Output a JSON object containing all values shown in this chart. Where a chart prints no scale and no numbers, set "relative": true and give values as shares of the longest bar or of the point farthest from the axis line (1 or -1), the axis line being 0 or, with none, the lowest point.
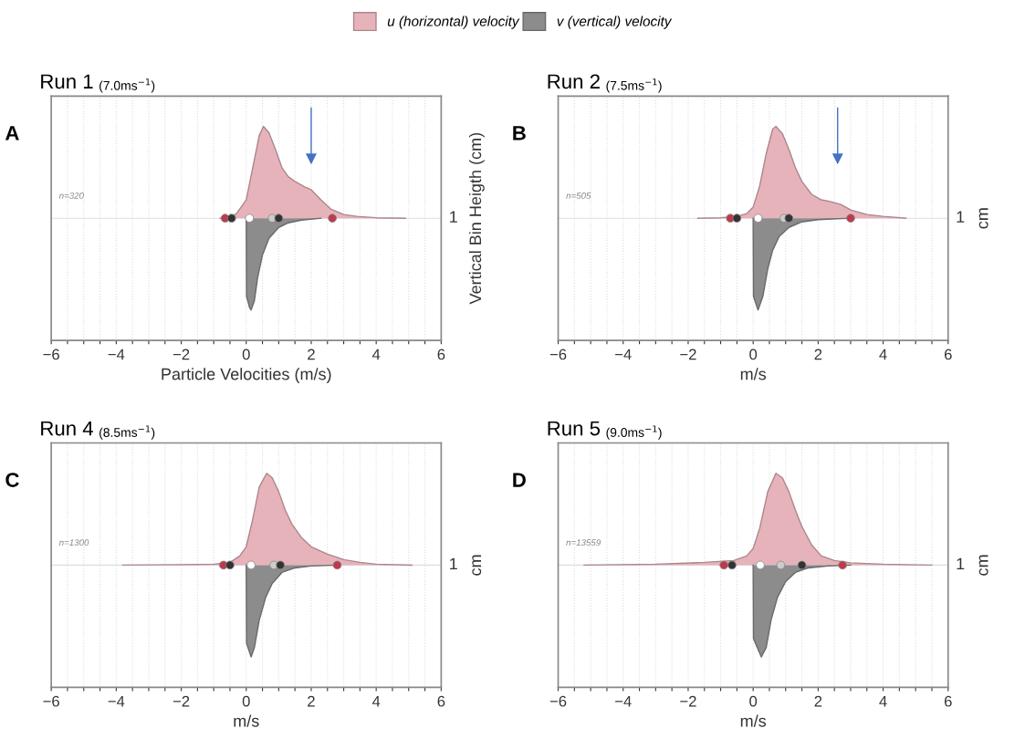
{
  "chart_data": [
    {
      "type": "area",
      "relative": true,
      "title": "Run 1",
      "subtitle": "(7.0ms$^{−1}$)",
      "xlabel": "Particle Velocities (m/s)",
      "ylabel": "Vertical Bin Heigth (cm)",
      "legend": "top",
      "grid": "x",
      "annotations": [
        "A",
        "n=320",
        "1"
      ],
      "ref_lines": [
        {
          "axis": "x",
          "value": 2.0,
          "color": "#4472c4"
        }
      ],
      "xlim": [
        -6,
        6
      ],
      "xticks": [
        -6,
        {
          "value": -5.5,
          "label": null
        },
        {
          "value": -5,
          "label": null
        },
        {
          "value": -4.5,
          "label": null
        },
        -4,
        {
          "value": -3.5,
          "label": null
        },
        {
          "value": -3,
          "label": null
        },
        {
          "value": -2.5,
          "label": null
        },
        -2,
        {
          "value": -1.5,
          "label": null
        },
        {
          "value": -1,
          "label": null
        },
        {
          "value": -0.5,
          "label": null
        },
        0,
        {
          "value": 0.5,
          "label": null
        },
        {
          "value": 1,
          "label": null
        },
        {
          "value": 1.5,
          "label": null
        },
        2,
        {
          "value": 2.5,
          "label": null
        },
        {
          "value": 3,
          "label": null
        },
        {
          "value": 3.5,
          "label": null
        },
        4,
        {
          "value": 4.5,
          "label": null
        },
        {
          "value": 5,
          "label": null
        },
        {
          "value": 5.5,
          "label": null
        },
        6
      ],
      "series": [
        {
          "name": "u (horizontal) velocity",
          "color": "#e6b3bb",
          "x": [
            -0.8,
            -0.5,
            -0.3,
            0,
            0.2,
            0.4,
            0.53,
            0.7,
            0.9,
            1.1,
            1.3,
            1.5,
            1.8,
            2.0,
            2.3,
            2.6,
            3.0,
            3.4,
            4.0,
            4.9
          ],
          "values": [
            0,
            0.01,
            0.05,
            0.2,
            0.55,
            0.9,
            1.0,
            0.93,
            0.75,
            0.55,
            0.45,
            0.4,
            0.34,
            0.31,
            0.2,
            0.1,
            0.04,
            0.02,
            0.005,
            0
          ]
        },
        {
          "name": "v (vertical) velocity",
          "color": "#8c8c8c",
          "x": [
            0,
            0.01,
            0.1,
            0.15,
            0.25,
            0.35,
            0.5,
            0.7,
            1.0,
            1.3,
            1.7,
            2.3
          ],
          "values": [
            0,
            -0.85,
            -0.97,
            -1.0,
            -0.9,
            -0.65,
            -0.4,
            -0.22,
            -0.1,
            -0.05,
            -0.02,
            0
          ]
        },
        {
          "type": "scatter",
          "marker": "circle",
          "x": [
            -0.65,
            -0.45,
            0.1,
            0.8,
            1.0,
            2.65
          ],
          "values": [
            0,
            0,
            0,
            0,
            0,
            0
          ],
          "colors": [
            "#c0394b",
            "#333333",
            "#ffffff",
            "#cccccc",
            "#333333",
            "#c0394b"
          ]
        }
      ]
    },
    {
      "type": "area",
      "relative": true,
      "title": "Run 2",
      "subtitle": "(7.5ms$^{−1}$)",
      "xlabel": "m/s",
      "ylabel": "cm",
      "grid": "x",
      "annotations": [
        "B",
        "n=505",
        "1"
      ],
      "ref_lines": [
        {
          "axis": "x",
          "value": 2.6,
          "color": "#4472c4"
        }
      ],
      "xlim": [
        -6,
        6
      ],
      "xticks": [
        -6,
        {
          "value": -5.5,
          "label": null
        },
        {
          "value": -5,
          "label": null
        },
        {
          "value": -4.5,
          "label": null
        },
        -4,
        {
          "value": -3.5,
          "label": null
        },
        {
          "value": -3,
          "label": null
        },
        {
          "value": -2.5,
          "label": null
        },
        -2,
        {
          "value": -1.5,
          "label": null
        },
        {
          "value": -1,
          "label": null
        },
        {
          "value": -0.5,
          "label": null
        },
        0,
        {
          "value": 0.5,
          "label": null
        },
        {
          "value": 1,
          "label": null
        },
        {
          "value": 1.5,
          "label": null
        },
        2,
        {
          "value": 2.5,
          "label": null
        },
        {
          "value": 3,
          "label": null
        },
        {
          "value": 3.5,
          "label": null
        },
        4,
        {
          "value": 4.5,
          "label": null
        },
        {
          "value": 5,
          "label": null
        },
        {
          "value": 5.5,
          "label": null
        },
        6
      ],
      "series": [
        {
          "name": "u (horizontal) velocity",
          "color": "#e6b3bb",
          "x": [
            -1.7,
            -1,
            -0.5,
            -0.2,
            0,
            0.2,
            0.4,
            0.6,
            0.7,
            0.9,
            1.1,
            1.3,
            1.5,
            1.8,
            2.1,
            2.4,
            2.7,
            3.0,
            3.5,
            4.0,
            4.7
          ],
          "values": [
            0,
            0.005,
            0.02,
            0.05,
            0.12,
            0.35,
            0.7,
            0.97,
            1.0,
            0.92,
            0.75,
            0.55,
            0.4,
            0.26,
            0.2,
            0.18,
            0.15,
            0.09,
            0.04,
            0.02,
            0
          ]
        },
        {
          "name": "v (vertical) velocity",
          "color": "#8c8c8c",
          "x": [
            0,
            0.01,
            0.15,
            0.3,
            0.45,
            0.6,
            0.8,
            1.1,
            1.5,
            2.0,
            3.0
          ],
          "values": [
            0,
            -0.85,
            -1.0,
            -0.85,
            -0.55,
            -0.35,
            -0.2,
            -0.1,
            -0.04,
            -0.015,
            0
          ]
        },
        {
          "type": "scatter",
          "marker": "circle",
          "x": [
            -0.7,
            -0.5,
            0.15,
            0.95,
            1.1,
            3.0
          ],
          "values": [
            0,
            0,
            0,
            0,
            0,
            0
          ],
          "colors": [
            "#c0394b",
            "#333333",
            "#ffffff",
            "#cccccc",
            "#333333",
            "#c0394b"
          ]
        }
      ]
    },
    {
      "type": "area",
      "relative": true,
      "title": "Run 4",
      "subtitle": "(8.5ms$^{−1}$)",
      "xlabel": "m/s",
      "ylabel": "cm",
      "grid": "x",
      "annotations": [
        "C",
        "n=1300",
        "1"
      ],
      "xlim": [
        -6,
        6
      ],
      "xticks": [
        -6,
        {
          "value": -5.5,
          "label": null
        },
        {
          "value": -5,
          "label": null
        },
        {
          "value": -4.5,
          "label": null
        },
        -4,
        {
          "value": -3.5,
          "label": null
        },
        {
          "value": -3,
          "label": null
        },
        {
          "value": -2.5,
          "label": null
        },
        -2,
        {
          "value": -1.5,
          "label": null
        },
        {
          "value": -1,
          "label": null
        },
        {
          "value": -0.5,
          "label": null
        },
        0,
        {
          "value": 0.5,
          "label": null
        },
        {
          "value": 1,
          "label": null
        },
        {
          "value": 1.5,
          "label": null
        },
        2,
        {
          "value": 2.5,
          "label": null
        },
        {
          "value": 3,
          "label": null
        },
        {
          "value": 3.5,
          "label": null
        },
        4,
        {
          "value": 4.5,
          "label": null
        },
        {
          "value": 5,
          "label": null
        },
        {
          "value": 5.5,
          "label": null
        },
        6
      ],
      "series": [
        {
          "name": "u (horizontal) velocity",
          "color": "#e6b3bb",
          "x": [
            -3.8,
            -2,
            -1,
            -0.5,
            -0.2,
            0,
            0.2,
            0.4,
            0.63,
            0.8,
            1.0,
            1.2,
            1.4,
            1.7,
            2.0,
            2.5,
            3.0,
            3.5,
            4.0,
            5.1
          ],
          "values": [
            0,
            0.005,
            0.01,
            0.03,
            0.1,
            0.2,
            0.5,
            0.85,
            1.0,
            0.95,
            0.8,
            0.6,
            0.45,
            0.3,
            0.2,
            0.12,
            0.06,
            0.03,
            0.01,
            0
          ]
        },
        {
          "name": "v (vertical) velocity",
          "color": "#8c8c8c",
          "x": [
            0,
            0.01,
            0.15,
            0.25,
            0.4,
            0.6,
            0.8,
            1.1,
            1.5,
            2.0,
            2.8
          ],
          "values": [
            0,
            -0.85,
            -1.0,
            -0.9,
            -0.6,
            -0.35,
            -0.2,
            -0.08,
            -0.03,
            -0.01,
            0
          ]
        },
        {
          "type": "scatter",
          "marker": "circle",
          "x": [
            -0.7,
            -0.5,
            0.15,
            0.85,
            1.05,
            2.8
          ],
          "values": [
            0,
            0,
            0,
            0,
            0,
            0
          ],
          "colors": [
            "#c0394b",
            "#333333",
            "#ffffff",
            "#cccccc",
            "#333333",
            "#c0394b"
          ]
        }
      ]
    },
    {
      "type": "area",
      "relative": true,
      "title": "Run 5",
      "subtitle": "(9.0ms$^{−1}$)",
      "xlabel": "m/s",
      "ylabel": "cm",
      "grid": "x",
      "annotations": [
        "D",
        "n=13559",
        "1"
      ],
      "xlim": [
        -6,
        6
      ],
      "xticks": [
        -6,
        {
          "value": -5.5,
          "label": null
        },
        {
          "value": -5,
          "label": null
        },
        {
          "value": -4.5,
          "label": null
        },
        -4,
        {
          "value": -3.5,
          "label": null
        },
        {
          "value": -3,
          "label": null
        },
        {
          "value": -2.5,
          "label": null
        },
        -2,
        {
          "value": -1.5,
          "label": null
        },
        {
          "value": -1,
          "label": null
        },
        {
          "value": -0.5,
          "label": null
        },
        0,
        {
          "value": 0.5,
          "label": null
        },
        {
          "value": 1,
          "label": null
        },
        {
          "value": 1.5,
          "label": null
        },
        2,
        {
          "value": 2.5,
          "label": null
        },
        {
          "value": 3,
          "label": null
        },
        {
          "value": 3.5,
          "label": null
        },
        4,
        {
          "value": 4.5,
          "label": null
        },
        {
          "value": 5,
          "label": null
        },
        {
          "value": 5.5,
          "label": null
        },
        6
      ],
      "series": [
        {
          "name": "u (horizontal) velocity",
          "color": "#e6b3bb",
          "x": [
            -5.2,
            -3,
            -1.5,
            -0.6,
            -0.2,
            0,
            0.2,
            0.45,
            0.7,
            0.9,
            1.1,
            1.3,
            1.5,
            1.8,
            2.1,
            2.5,
            3.0,
            4.0,
            5.5
          ],
          "values": [
            0,
            0.01,
            0.03,
            0.05,
            0.1,
            0.18,
            0.4,
            0.8,
            1.0,
            0.95,
            0.8,
            0.6,
            0.42,
            0.22,
            0.1,
            0.05,
            0.025,
            0.01,
            0
          ]
        },
        {
          "name": "v (vertical) velocity",
          "color": "#8c8c8c",
          "x": [
            0,
            0.01,
            0.25,
            0.4,
            0.55,
            0.75,
            1.0,
            1.3,
            1.7,
            2.3,
            3.0
          ],
          "values": [
            0,
            -0.8,
            -1.0,
            -0.9,
            -0.6,
            -0.35,
            -0.18,
            -0.08,
            -0.03,
            -0.01,
            0
          ]
        },
        {
          "type": "scatter",
          "marker": "circle",
          "x": [
            -0.9,
            -0.65,
            0.22,
            0.85,
            1.5,
            2.75
          ],
          "values": [
            0,
            0,
            0,
            0,
            0,
            0
          ],
          "colors": [
            "#c0394b",
            "#333333",
            "#ffffff",
            "#cccccc",
            "#333333",
            "#c0394b"
          ]
        }
      ]
    }
  ]
}
